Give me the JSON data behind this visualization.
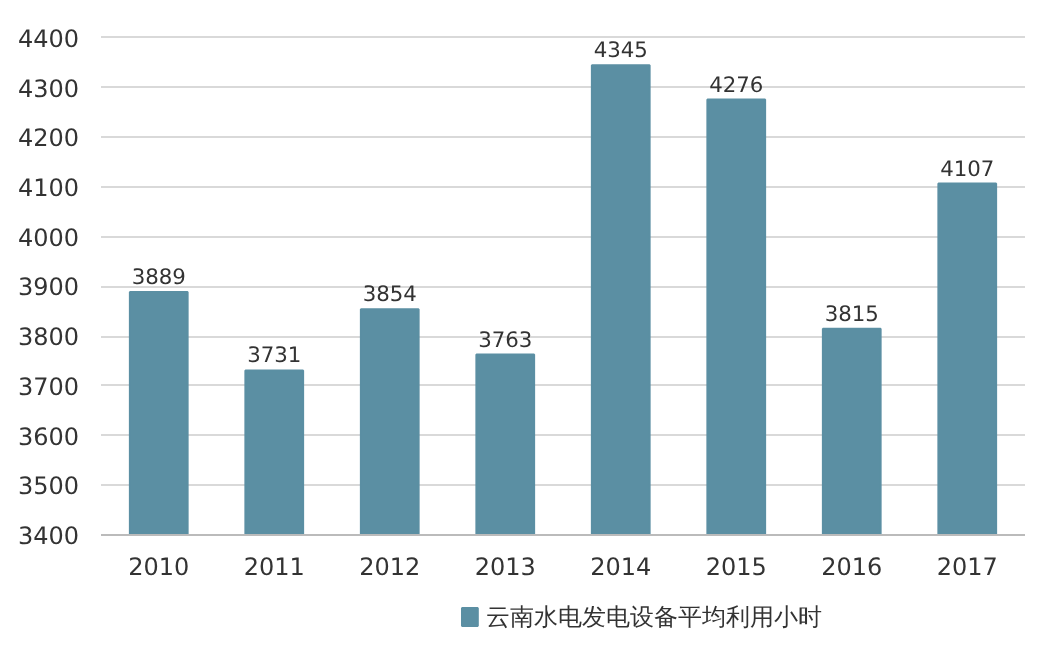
{
  "chart_data": {
    "type": "bar",
    "categories": [
      "2010",
      "2011",
      "2012",
      "2013",
      "2014",
      "2015",
      "2016",
      "2017"
    ],
    "series": [
      {
        "name": "云南水电发电设备平均利用小时",
        "color": "#5b8fa3",
        "values": [
          3889,
          3731,
          3854,
          3763,
          4345,
          4276,
          3815,
          4107
        ]
      }
    ],
    "ylim": [
      3400,
      4400
    ],
    "yticks": [
      3400,
      3500,
      3600,
      3700,
      3800,
      3900,
      4000,
      4100,
      4200,
      4300,
      4400
    ],
    "grid": "y",
    "legend": "bottom",
    "data_labels": true
  }
}
